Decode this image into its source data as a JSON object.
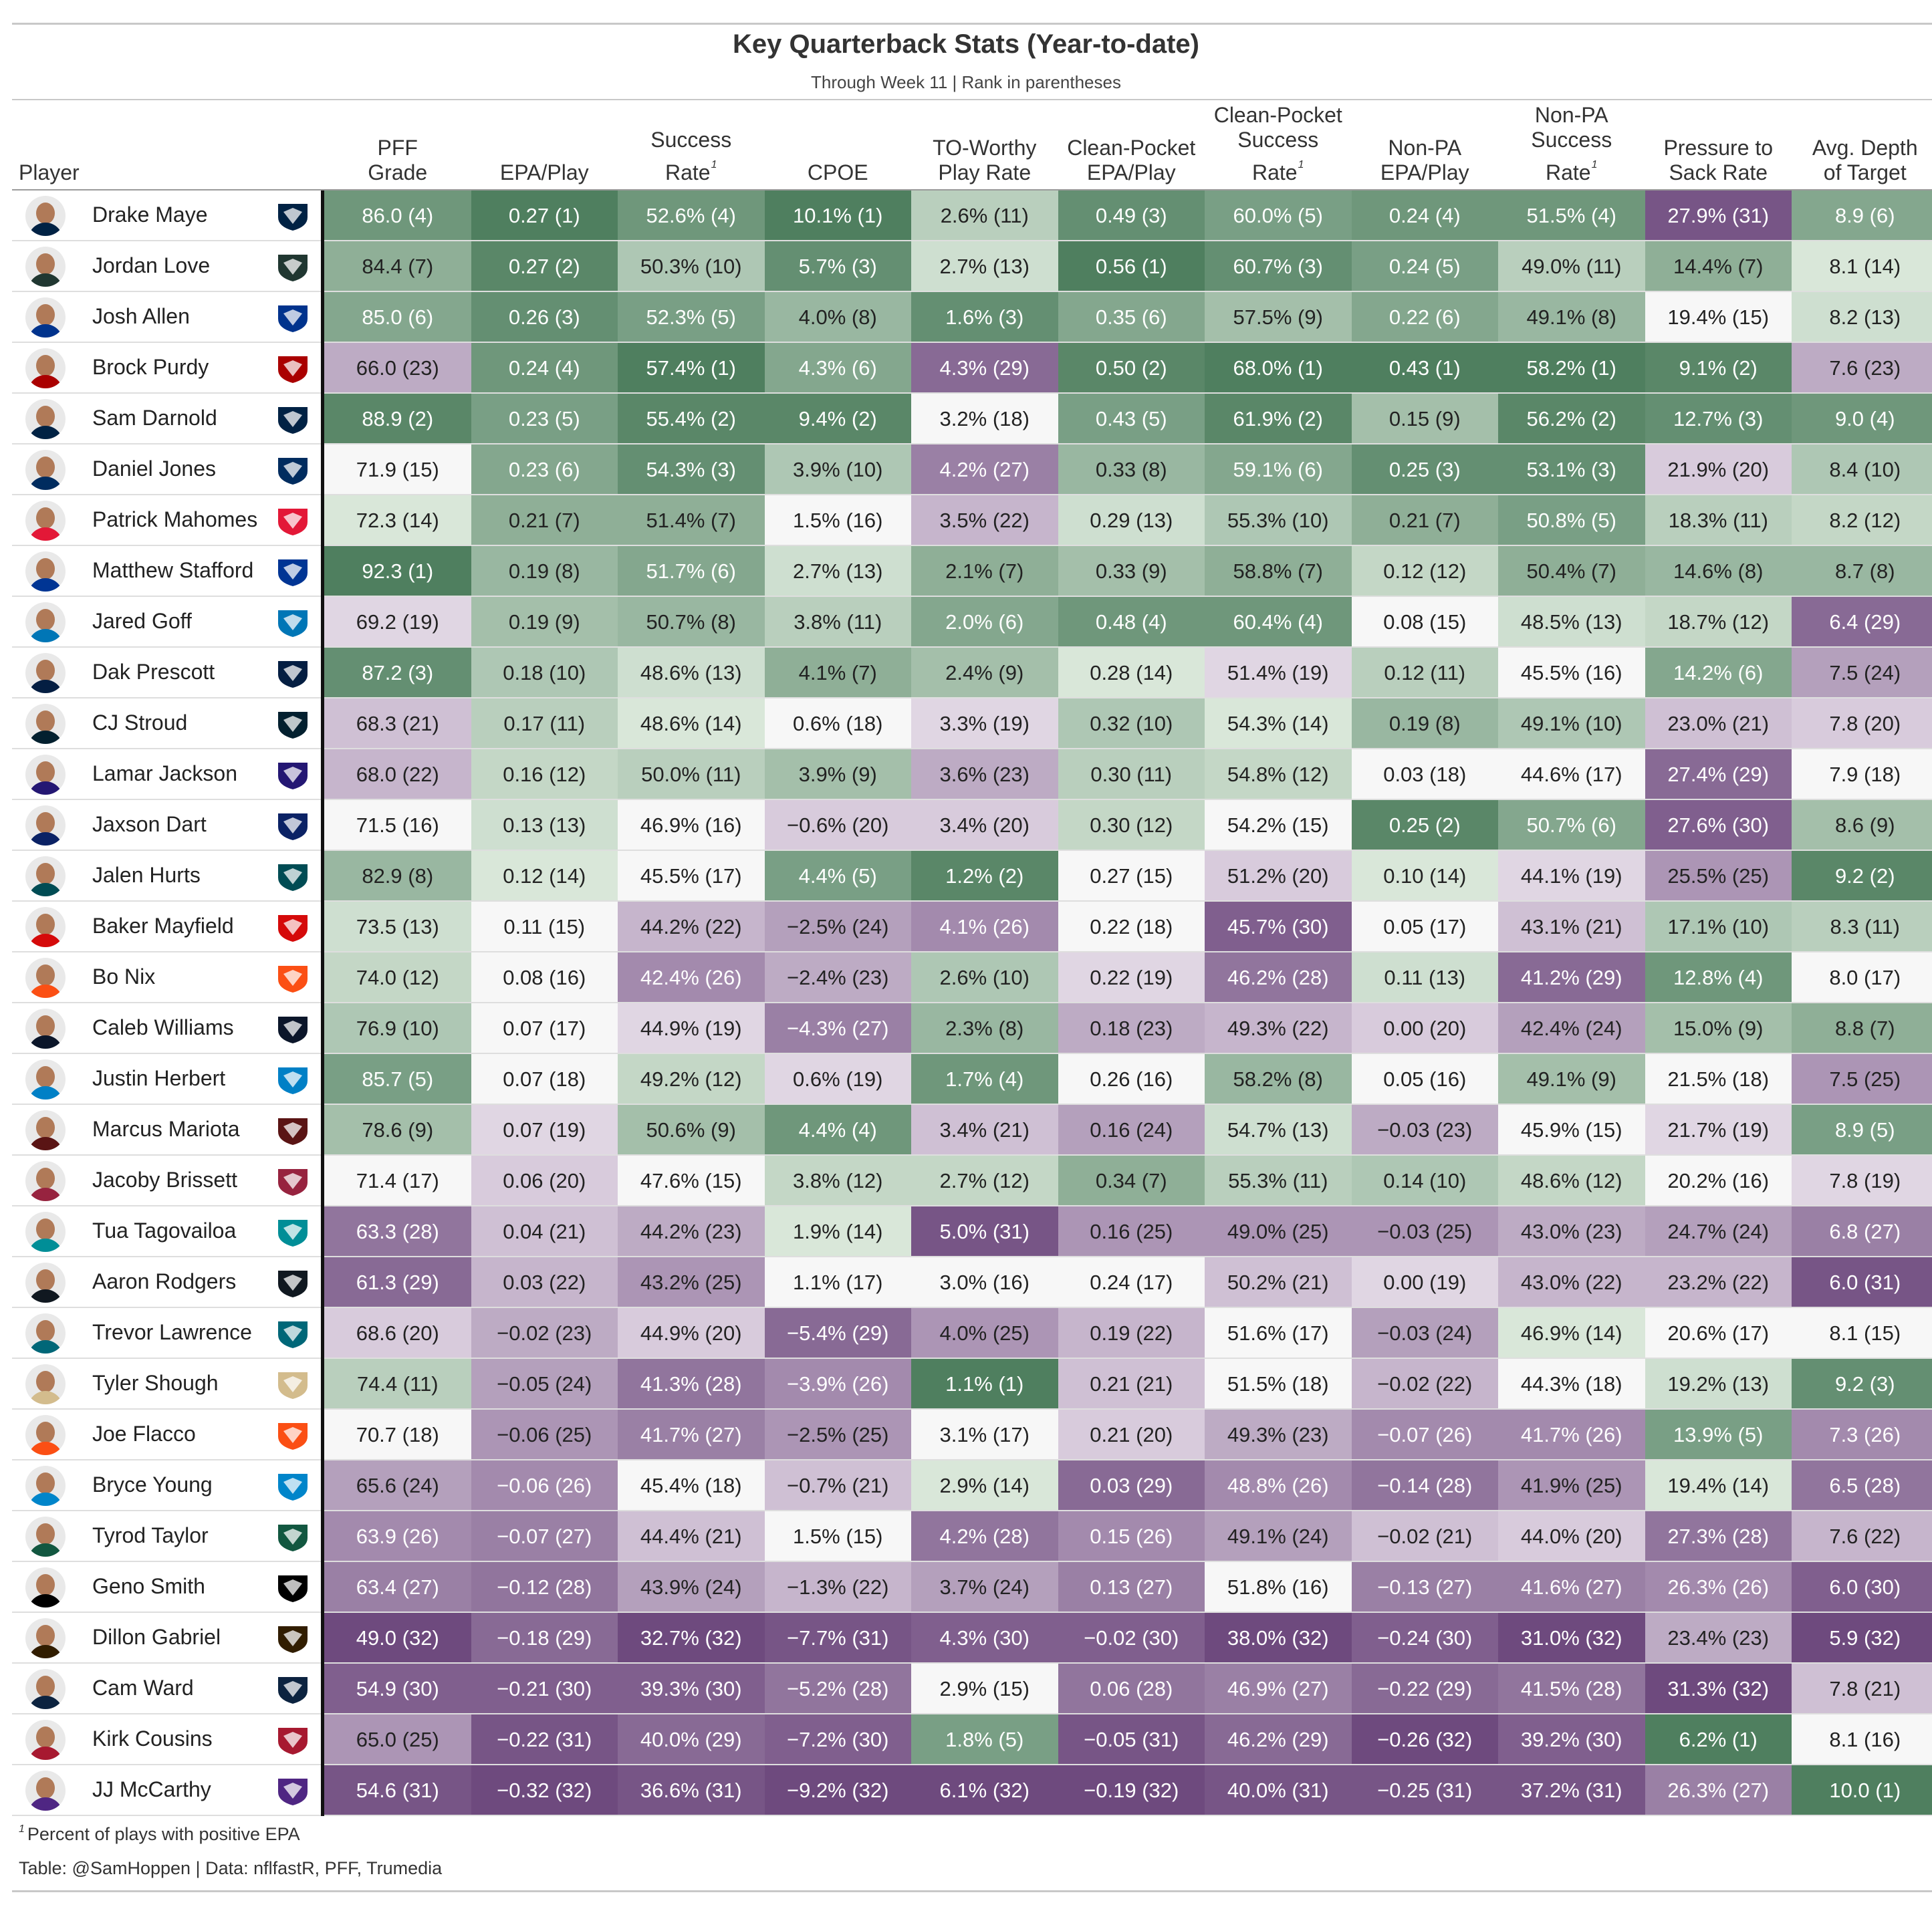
{
  "title": "Key Quarterback Stats (Year-to-date)",
  "subtitle": "Through Week 11 | Rank in parentheses",
  "player_header": "Player",
  "footnote_marker": "1",
  "footnote": "Percent of plays with positive EPA",
  "source": "Table: @SamHoppen | Data: nflfastR, PFF, Trumedia",
  "colors": {
    "green_max": "#4f7f5f",
    "green_min": "#eef7ec",
    "neutral": "#f7f7f7",
    "purple_min": "#f2ebf3",
    "purple_max": "#6e4a7e"
  },
  "columns": [
    {
      "label_lines": [
        "PFF",
        "Grade"
      ],
      "footnote": false
    },
    {
      "label_lines": [
        "EPA/Play"
      ],
      "footnote": false
    },
    {
      "label_lines": [
        "Success",
        "Rate"
      ],
      "footnote": true
    },
    {
      "label_lines": [
        "CPOE"
      ],
      "footnote": false
    },
    {
      "label_lines": [
        "TO-Worthy",
        "Play Rate"
      ],
      "footnote": false
    },
    {
      "label_lines": [
        "Clean-Pocket",
        "EPA/Play"
      ],
      "footnote": false
    },
    {
      "label_lines": [
        "Clean-Pocket",
        "Success",
        "Rate"
      ],
      "footnote": true
    },
    {
      "label_lines": [
        "Non-PA",
        "EPA/Play"
      ],
      "footnote": false
    },
    {
      "label_lines": [
        "Non-PA",
        "Success",
        "Rate"
      ],
      "footnote": true
    },
    {
      "label_lines": [
        "Pressure to",
        "Sack Rate"
      ],
      "footnote": false
    },
    {
      "label_lines": [
        "Avg. Depth",
        "of Target"
      ],
      "footnote": false
    }
  ],
  "rows": [
    {
      "player": "Drake Maye",
      "team_icon": "patriots-logo-icon",
      "team_color": "#002244",
      "cells": [
        "86.0 (4)",
        "0.27 (1)",
        "52.6% (4)",
        "10.1% (1)",
        "2.6% (11)",
        "0.49 (3)",
        "60.0% (5)",
        "0.24 (4)",
        "51.5% (4)",
        "27.9% (31)",
        "8.9 (6)"
      ]
    },
    {
      "player": "Jordan Love",
      "team_icon": "packers-logo-icon",
      "team_color": "#203731",
      "cells": [
        "84.4 (7)",
        "0.27 (2)",
        "50.3% (10)",
        "5.7% (3)",
        "2.7% (13)",
        "0.56 (1)",
        "60.7% (3)",
        "0.24 (5)",
        "49.0% (11)",
        "14.4% (7)",
        "8.1 (14)"
      ]
    },
    {
      "player": "Josh Allen",
      "team_icon": "bills-logo-icon",
      "team_color": "#00338d",
      "cells": [
        "85.0 (6)",
        "0.26 (3)",
        "52.3% (5)",
        "4.0% (8)",
        "1.6% (3)",
        "0.35 (6)",
        "57.5% (9)",
        "0.22 (6)",
        "49.1% (8)",
        "19.4% (15)",
        "8.2 (13)"
      ]
    },
    {
      "player": "Brock Purdy",
      "team_icon": "49ers-logo-icon",
      "team_color": "#aa0000",
      "cells": [
        "66.0 (23)",
        "0.24 (4)",
        "57.4% (1)",
        "4.3% (6)",
        "4.3% (29)",
        "0.50 (2)",
        "68.0% (1)",
        "0.43 (1)",
        "58.2% (1)",
        "9.1% (2)",
        "7.6 (23)"
      ]
    },
    {
      "player": "Sam Darnold",
      "team_icon": "seahawks-logo-icon",
      "team_color": "#002244",
      "cells": [
        "88.9 (2)",
        "0.23 (5)",
        "55.4% (2)",
        "9.4% (2)",
        "3.2% (18)",
        "0.43 (5)",
        "61.9% (2)",
        "0.15 (9)",
        "56.2% (2)",
        "12.7% (3)",
        "9.0 (4)"
      ]
    },
    {
      "player": "Daniel Jones",
      "team_icon": "colts-logo-icon",
      "team_color": "#002c5f",
      "cells": [
        "71.9 (15)",
        "0.23 (6)",
        "54.3% (3)",
        "3.9% (10)",
        "4.2% (27)",
        "0.33 (8)",
        "59.1% (6)",
        "0.25 (3)",
        "53.1% (3)",
        "21.9% (20)",
        "8.4 (10)"
      ]
    },
    {
      "player": "Patrick Mahomes",
      "team_icon": "chiefs-logo-icon",
      "team_color": "#e31837",
      "cells": [
        "72.3 (14)",
        "0.21 (7)",
        "51.4% (7)",
        "1.5% (16)",
        "3.5% (22)",
        "0.29 (13)",
        "55.3% (10)",
        "0.21 (7)",
        "50.8% (5)",
        "18.3% (11)",
        "8.2 (12)"
      ]
    },
    {
      "player": "Matthew Stafford",
      "team_icon": "rams-logo-icon",
      "team_color": "#003594",
      "cells": [
        "92.3 (1)",
        "0.19 (8)",
        "51.7% (6)",
        "2.7% (13)",
        "2.1% (7)",
        "0.33 (9)",
        "58.8% (7)",
        "0.12 (12)",
        "50.4% (7)",
        "14.6% (8)",
        "8.7 (8)"
      ]
    },
    {
      "player": "Jared Goff",
      "team_icon": "lions-logo-icon",
      "team_color": "#0076b6",
      "cells": [
        "69.2 (19)",
        "0.19 (9)",
        "50.7% (8)",
        "3.8% (11)",
        "2.0% (6)",
        "0.48 (4)",
        "60.4% (4)",
        "0.08 (15)",
        "48.5% (13)",
        "18.7% (12)",
        "6.4 (29)"
      ]
    },
    {
      "player": "Dak Prescott",
      "team_icon": "cowboys-logo-icon",
      "team_color": "#041e42",
      "cells": [
        "87.2 (3)",
        "0.18 (10)",
        "48.6% (13)",
        "4.1% (7)",
        "2.4% (9)",
        "0.28 (14)",
        "51.4% (19)",
        "0.12 (11)",
        "45.5% (16)",
        "14.2% (6)",
        "7.5 (24)"
      ]
    },
    {
      "player": "CJ Stroud",
      "team_icon": "texans-logo-icon",
      "team_color": "#03202f",
      "cells": [
        "68.3 (21)",
        "0.17 (11)",
        "48.6% (14)",
        "0.6% (18)",
        "3.3% (19)",
        "0.32 (10)",
        "54.3% (14)",
        "0.19 (8)",
        "49.1% (10)",
        "23.0% (21)",
        "7.8 (20)"
      ]
    },
    {
      "player": "Lamar Jackson",
      "team_icon": "ravens-logo-icon",
      "team_color": "#241773",
      "cells": [
        "68.0 (22)",
        "0.16 (12)",
        "50.0% (11)",
        "3.9% (9)",
        "3.6% (23)",
        "0.30 (11)",
        "54.8% (12)",
        "0.03 (18)",
        "44.6% (17)",
        "27.4% (29)",
        "7.9 (18)"
      ]
    },
    {
      "player": "Jaxson Dart",
      "team_icon": "giants-logo-icon",
      "team_color": "#0b2265",
      "cells": [
        "71.5 (16)",
        "0.13 (13)",
        "46.9% (16)",
        "−0.6% (20)",
        "3.4% (20)",
        "0.30 (12)",
        "54.2% (15)",
        "0.25 (2)",
        "50.7% (6)",
        "27.6% (30)",
        "8.6 (9)"
      ]
    },
    {
      "player": "Jalen Hurts",
      "team_icon": "eagles-logo-icon",
      "team_color": "#004c54",
      "cells": [
        "82.9 (8)",
        "0.12 (14)",
        "45.5% (17)",
        "4.4% (5)",
        "1.2% (2)",
        "0.27 (15)",
        "51.2% (20)",
        "0.10 (14)",
        "44.1% (19)",
        "25.5% (25)",
        "9.2 (2)"
      ]
    },
    {
      "player": "Baker Mayfield",
      "team_icon": "buccaneers-logo-icon",
      "team_color": "#d50a0a",
      "cells": [
        "73.5 (13)",
        "0.11 (15)",
        "44.2% (22)",
        "−2.5% (24)",
        "4.1% (26)",
        "0.22 (18)",
        "45.7% (30)",
        "0.05 (17)",
        "43.1% (21)",
        "17.1% (10)",
        "8.3 (11)"
      ]
    },
    {
      "player": "Bo Nix",
      "team_icon": "broncos-logo-icon",
      "team_color": "#fb4f14",
      "cells": [
        "74.0 (12)",
        "0.08 (16)",
        "42.4% (26)",
        "−2.4% (23)",
        "2.6% (10)",
        "0.22 (19)",
        "46.2% (28)",
        "0.11 (13)",
        "41.2% (29)",
        "12.8% (4)",
        "8.0 (17)"
      ]
    },
    {
      "player": "Caleb Williams",
      "team_icon": "bears-logo-icon",
      "team_color": "#0b162a",
      "cells": [
        "76.9 (10)",
        "0.07 (17)",
        "44.9% (19)",
        "−4.3% (27)",
        "2.3% (8)",
        "0.18 (23)",
        "49.3% (22)",
        "0.00 (20)",
        "42.4% (24)",
        "15.0% (9)",
        "8.8 (7)"
      ]
    },
    {
      "player": "Justin Herbert",
      "team_icon": "chargers-logo-icon",
      "team_color": "#0080c6",
      "cells": [
        "85.7 (5)",
        "0.07 (18)",
        "49.2% (12)",
        "0.6% (19)",
        "1.7% (4)",
        "0.26 (16)",
        "58.2% (8)",
        "0.05 (16)",
        "49.1% (9)",
        "21.5% (18)",
        "7.5 (25)"
      ]
    },
    {
      "player": "Marcus Mariota",
      "team_icon": "commanders-logo-icon",
      "team_color": "#5a1414",
      "cells": [
        "78.6 (9)",
        "0.07 (19)",
        "50.6% (9)",
        "4.4% (4)",
        "3.4% (21)",
        "0.16 (24)",
        "54.7% (13)",
        "−0.03 (23)",
        "45.9% (15)",
        "21.7% (19)",
        "8.9 (5)"
      ]
    },
    {
      "player": "Jacoby Brissett",
      "team_icon": "cardinals-logo-icon",
      "team_color": "#97233f",
      "cells": [
        "71.4 (17)",
        "0.06 (20)",
        "47.6% (15)",
        "3.8% (12)",
        "2.7% (12)",
        "0.34 (7)",
        "55.3% (11)",
        "0.14 (10)",
        "48.6% (12)",
        "20.2% (16)",
        "7.8 (19)"
      ]
    },
    {
      "player": "Tua Tagovailoa",
      "team_icon": "dolphins-logo-icon",
      "team_color": "#008e97",
      "cells": [
        "63.3 (28)",
        "0.04 (21)",
        "44.2% (23)",
        "1.9% (14)",
        "5.0% (31)",
        "0.16 (25)",
        "49.0% (25)",
        "−0.03 (25)",
        "43.0% (23)",
        "24.7% (24)",
        "6.8 (27)"
      ]
    },
    {
      "player": "Aaron Rodgers",
      "team_icon": "steelers-logo-icon",
      "team_color": "#101820",
      "cells": [
        "61.3 (29)",
        "0.03 (22)",
        "43.2% (25)",
        "1.1% (17)",
        "3.0% (16)",
        "0.24 (17)",
        "50.2% (21)",
        "0.00 (19)",
        "43.0% (22)",
        "23.2% (22)",
        "6.0 (31)"
      ]
    },
    {
      "player": "Trevor Lawrence",
      "team_icon": "jaguars-logo-icon",
      "team_color": "#006778",
      "cells": [
        "68.6 (20)",
        "−0.02 (23)",
        "44.9% (20)",
        "−5.4% (29)",
        "4.0% (25)",
        "0.19 (22)",
        "51.6% (17)",
        "−0.03 (24)",
        "46.9% (14)",
        "20.6% (17)",
        "8.1 (15)"
      ]
    },
    {
      "player": "Tyler Shough",
      "team_icon": "saints-logo-icon",
      "team_color": "#d3bc8d",
      "cells": [
        "74.4 (11)",
        "−0.05 (24)",
        "41.3% (28)",
        "−3.9% (26)",
        "1.1% (1)",
        "0.21 (21)",
        "51.5% (18)",
        "−0.02 (22)",
        "44.3% (18)",
        "19.2% (13)",
        "9.2 (3)"
      ]
    },
    {
      "player": "Joe Flacco",
      "team_icon": "bengals-logo-icon",
      "team_color": "#fb4f14",
      "cells": [
        "70.7 (18)",
        "−0.06 (25)",
        "41.7% (27)",
        "−2.5% (25)",
        "3.1% (17)",
        "0.21 (20)",
        "49.3% (23)",
        "−0.07 (26)",
        "41.7% (26)",
        "13.9% (5)",
        "7.3 (26)"
      ]
    },
    {
      "player": "Bryce Young",
      "team_icon": "panthers-logo-icon",
      "team_color": "#0085ca",
      "cells": [
        "65.6 (24)",
        "−0.06 (26)",
        "45.4% (18)",
        "−0.7% (21)",
        "2.9% (14)",
        "0.03 (29)",
        "48.8% (26)",
        "−0.14 (28)",
        "41.9% (25)",
        "19.4% (14)",
        "6.5 (28)"
      ]
    },
    {
      "player": "Tyrod Taylor",
      "team_icon": "jets-logo-icon",
      "team_color": "#125740",
      "cells": [
        "63.9 (26)",
        "−0.07 (27)",
        "44.4% (21)",
        "1.5% (15)",
        "4.2% (28)",
        "0.15 (26)",
        "49.1% (24)",
        "−0.02 (21)",
        "44.0% (20)",
        "27.3% (28)",
        "7.6 (22)"
      ]
    },
    {
      "player": "Geno Smith",
      "team_icon": "raiders-logo-icon",
      "team_color": "#000000",
      "cells": [
        "63.4 (27)",
        "−0.12 (28)",
        "43.9% (24)",
        "−1.3% (22)",
        "3.7% (24)",
        "0.13 (27)",
        "51.8% (16)",
        "−0.13 (27)",
        "41.6% (27)",
        "26.3% (26)",
        "6.0 (30)"
      ]
    },
    {
      "player": "Dillon Gabriel",
      "team_icon": "browns-logo-icon",
      "team_color": "#311d00",
      "cells": [
        "49.0 (32)",
        "−0.18 (29)",
        "32.7% (32)",
        "−7.7% (31)",
        "4.3% (30)",
        "−0.02 (30)",
        "38.0% (32)",
        "−0.24 (30)",
        "31.0% (32)",
        "23.4% (23)",
        "5.9 (32)"
      ]
    },
    {
      "player": "Cam Ward",
      "team_icon": "titans-logo-icon",
      "team_color": "#0c2340",
      "cells": [
        "54.9 (30)",
        "−0.21 (30)",
        "39.3% (30)",
        "−5.2% (28)",
        "2.9% (15)",
        "0.06 (28)",
        "46.9% (27)",
        "−0.22 (29)",
        "41.5% (28)",
        "31.3% (32)",
        "7.8 (21)"
      ]
    },
    {
      "player": "Kirk Cousins",
      "team_icon": "falcons-logo-icon",
      "team_color": "#a71930",
      "cells": [
        "65.0 (25)",
        "−0.22 (31)",
        "40.0% (29)",
        "−7.2% (30)",
        "1.8% (5)",
        "−0.05 (31)",
        "46.2% (29)",
        "−0.26 (32)",
        "39.2% (30)",
        "6.2% (1)",
        "8.1 (16)"
      ]
    },
    {
      "player": "JJ McCarthy",
      "team_icon": "vikings-logo-icon",
      "team_color": "#4f2683",
      "cells": [
        "54.6 (31)",
        "−0.32 (32)",
        "36.6% (31)",
        "−9.2% (32)",
        "6.1% (32)",
        "−0.19 (32)",
        "40.0% (31)",
        "−0.25 (31)",
        "37.2% (31)",
        "26.3% (27)",
        "10.0 (1)"
      ]
    }
  ]
}
